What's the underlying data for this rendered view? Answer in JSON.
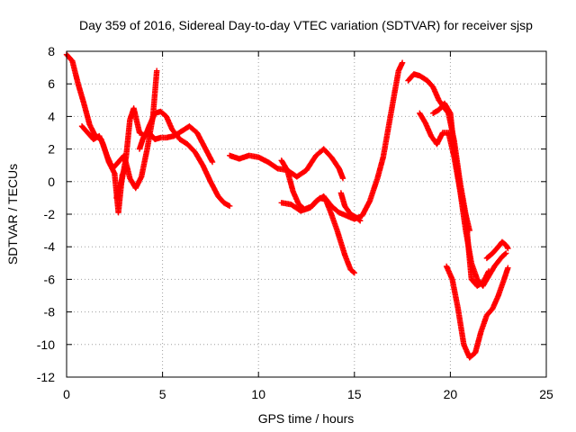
{
  "chart_data": {
    "type": "scatter",
    "title": "Day 359 of 2016, Sidereal Day-to-day VTEC variation (SDTVAR) for receiver sjsp",
    "xlabel": "GPS time / hours",
    "ylabel": "SDTVAR / TECUs",
    "xlim": [
      0,
      25
    ],
    "ylim": [
      -12,
      8
    ],
    "xticks": [
      "0",
      "5",
      "10",
      "15",
      "20",
      "25"
    ],
    "yticks": [
      "-12",
      "-10",
      "-8",
      "-6",
      "-4",
      "-2",
      "0",
      "2",
      "4",
      "6",
      "8"
    ],
    "grid": true,
    "legend": "none",
    "marker": "plus",
    "color": "#ff0000",
    "series": [
      {
        "x": [
          0.0,
          0.3,
          0.6,
          0.9,
          1.2,
          1.5,
          1.8,
          2.1,
          2.4,
          2.7,
          3.0,
          3.3,
          3.6,
          3.9,
          4.2,
          4.5,
          4.7
        ],
        "y": [
          7.8,
          7.4,
          6.0,
          4.8,
          3.5,
          2.8,
          2.6,
          1.6,
          0.8,
          1.2,
          1.6,
          0.2,
          -0.4,
          0.3,
          2.0,
          4.0,
          6.8
        ]
      },
      {
        "x": [
          0.8,
          1.1,
          1.4,
          1.7,
          1.9,
          2.2,
          2.5,
          2.7,
          2.9,
          3.1
        ],
        "y": [
          3.4,
          3.0,
          2.6,
          2.8,
          2.3,
          1.2,
          0.5,
          -1.9,
          0.4,
          0.9
        ]
      },
      {
        "x": [
          2.6,
          2.9,
          3.1,
          3.3,
          3.5,
          3.8,
          4.1,
          4.3,
          4.6,
          4.9,
          5.2,
          5.5,
          5.9,
          6.3,
          6.7,
          7.1,
          7.5,
          7.9,
          8.2,
          8.5
        ],
        "y": [
          -1.0,
          0.2,
          1.5,
          3.8,
          4.5,
          3.0,
          2.8,
          3.4,
          4.2,
          4.3,
          4.0,
          3.2,
          2.6,
          2.3,
          1.8,
          1.0,
          0.0,
          -0.9,
          -1.3,
          -1.5
        ]
      },
      {
        "x": [
          3.8,
          4.0,
          4.3,
          4.6,
          4.9,
          5.2,
          5.6,
          6.0,
          6.4,
          6.8,
          7.2,
          7.6
        ],
        "y": [
          2.0,
          2.7,
          3.0,
          2.6,
          2.7,
          2.7,
          2.8,
          3.1,
          3.4,
          3.0,
          2.1,
          1.2
        ]
      },
      {
        "x": [
          8.5,
          9.0,
          9.5,
          10.0,
          10.5,
          11.0,
          11.5,
          12.0,
          12.5,
          13.0,
          13.4,
          13.8,
          14.2,
          14.4
        ],
        "y": [
          1.6,
          1.4,
          1.6,
          1.5,
          1.2,
          0.8,
          0.7,
          0.3,
          0.7,
          1.6,
          2.0,
          1.5,
          0.8,
          0.2
        ]
      },
      {
        "x": [
          11.2,
          11.5,
          11.8,
          12.1,
          12.4,
          12.8,
          13.2,
          13.5,
          13.8,
          14.1,
          14.5,
          14.8,
          15.0
        ],
        "y": [
          1.3,
          0.7,
          -0.6,
          -1.4,
          -1.7,
          -1.5,
          -1.0,
          -1.1,
          -2.0,
          -3.0,
          -4.5,
          -5.4,
          -5.6
        ]
      },
      {
        "x": [
          11.2,
          11.7,
          12.2,
          12.7,
          13.0,
          13.4,
          13.8,
          14.2,
          14.6,
          15.0,
          15.4,
          15.8,
          16.2,
          16.5,
          16.8,
          17.1,
          17.3,
          17.5
        ],
        "y": [
          -1.3,
          -1.4,
          -1.8,
          -1.6,
          -1.2,
          -0.9,
          -1.5,
          -1.9,
          -2.1,
          -2.3,
          -2.1,
          -1.2,
          0.2,
          1.5,
          3.5,
          5.5,
          6.8,
          7.3
        ]
      },
      {
        "x": [
          14.3,
          14.5,
          14.8,
          15.1,
          15.3
        ],
        "y": [
          -0.7,
          -1.5,
          -2.0,
          -2.2,
          -2.4
        ]
      },
      {
        "x": [
          17.8,
          18.1,
          18.4,
          18.8,
          19.1,
          19.4,
          19.7,
          19.9,
          20.2,
          20.5,
          20.8,
          21.0
        ],
        "y": [
          6.2,
          6.6,
          6.5,
          6.2,
          5.8,
          5.0,
          4.5,
          4.2,
          2.5,
          0.0,
          -2.0,
          -3.0
        ]
      },
      {
        "x": [
          18.4,
          18.7,
          19.0,
          19.3,
          19.6,
          19.9,
          20.2,
          20.5,
          20.8,
          21.1,
          21.4,
          21.7,
          22.0
        ],
        "y": [
          4.2,
          3.6,
          2.8,
          2.3,
          3.0,
          3.0,
          1.5,
          -0.5,
          -2.2,
          -6.0,
          -6.4,
          -6.2,
          -5.5
        ]
      },
      {
        "x": [
          19.1,
          19.4,
          19.7,
          20.0,
          20.2,
          20.5,
          20.8,
          21.1,
          21.4,
          21.7,
          22.0,
          22.3,
          22.7,
          22.9
        ],
        "y": [
          4.2,
          4.4,
          4.8,
          4.2,
          2.0,
          -0.5,
          -3.0,
          -5.0,
          -6.0,
          -6.4,
          -5.8,
          -5.2,
          -4.6,
          -4.4
        ]
      },
      {
        "x": [
          19.8,
          20.1,
          20.4,
          20.7,
          21.0,
          21.3,
          21.6,
          21.9,
          22.2,
          22.5,
          22.8,
          23.0
        ],
        "y": [
          -5.2,
          -6.0,
          -7.8,
          -10.0,
          -10.8,
          -10.5,
          -9.2,
          -8.2,
          -7.8,
          -7.0,
          -6.0,
          -5.3
        ]
      },
      {
        "x": [
          21.9,
          22.2,
          22.5,
          22.7,
          22.9,
          23.0
        ],
        "y": [
          -4.7,
          -4.4,
          -4.0,
          -3.7,
          -3.9,
          -4.1
        ]
      }
    ]
  }
}
